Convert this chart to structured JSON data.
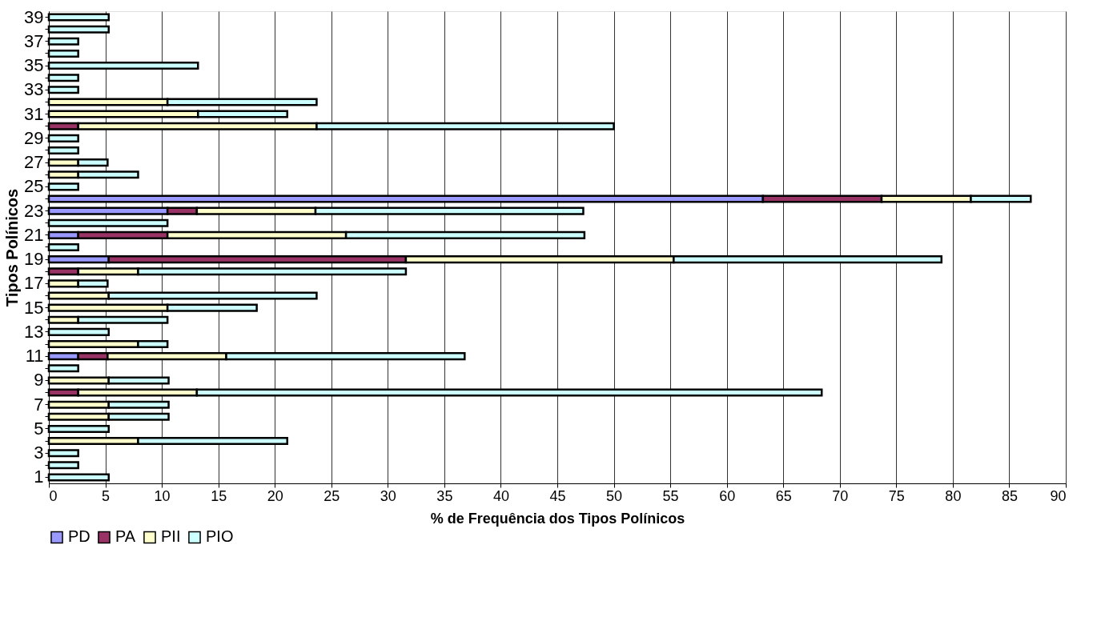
{
  "chart_data": {
    "type": "bar",
    "orientation": "horizontal",
    "stacked": true,
    "xlabel": "% de Frequência dos Tipos Polínicos",
    "ylabel": "Tipos Polínicos",
    "categories": [
      "39",
      null,
      "37",
      null,
      "35",
      null,
      "33",
      null,
      "31",
      null,
      "29",
      null,
      "27",
      null,
      "25",
      null,
      "23",
      null,
      "21",
      null,
      "19",
      null,
      "17",
      null,
      "15",
      null,
      "13",
      null,
      "11",
      null,
      "9",
      null,
      "7",
      null,
      "5",
      null,
      "3",
      null,
      "1"
    ],
    "series": [
      {
        "name": "PD",
        "color": "#9999ff",
        "values": [
          null,
          null,
          null,
          null,
          null,
          null,
          null,
          null,
          null,
          null,
          null,
          null,
          null,
          null,
          null,
          63.2,
          10.5,
          null,
          2.6,
          null,
          5.3,
          null,
          null,
          null,
          null,
          null,
          null,
          null,
          2.6,
          null,
          null,
          null,
          null,
          null,
          null,
          null,
          null,
          null,
          null
        ]
      },
      {
        "name": "PA",
        "color": "#993366",
        "values": [
          null,
          null,
          null,
          null,
          null,
          null,
          null,
          null,
          null,
          2.6,
          null,
          null,
          null,
          null,
          null,
          10.5,
          2.6,
          null,
          7.9,
          null,
          26.3,
          2.6,
          null,
          null,
          null,
          null,
          null,
          null,
          2.6,
          null,
          null,
          2.6,
          null,
          null,
          null,
          null,
          null,
          null,
          null
        ]
      },
      {
        "name": "PII",
        "color": "#ffffcc",
        "values": [
          null,
          null,
          null,
          null,
          null,
          null,
          null,
          10.5,
          13.2,
          21.1,
          null,
          null,
          2.6,
          2.6,
          null,
          7.9,
          10.5,
          null,
          15.8,
          null,
          23.7,
          5.3,
          2.6,
          5.3,
          10.5,
          2.6,
          null,
          7.9,
          10.5,
          null,
          5.3,
          10.5,
          5.3,
          5.3,
          null,
          7.9,
          null,
          null,
          null
        ]
      },
      {
        "name": "PIO",
        "color": "#ccffff",
        "values": [
          5.3,
          5.3,
          2.6,
          2.6,
          13.2,
          2.6,
          2.6,
          13.2,
          7.9,
          26.3,
          2.6,
          2.6,
          2.6,
          5.3,
          2.6,
          5.3,
          23.7,
          10.5,
          21.1,
          2.6,
          23.7,
          23.7,
          2.6,
          18.4,
          7.9,
          7.9,
          5.3,
          2.6,
          21.1,
          2.6,
          5.3,
          55.3,
          5.3,
          5.3,
          5.3,
          13.2,
          2.6,
          2.6,
          5.3
        ]
      }
    ],
    "xlim": [
      0,
      90
    ],
    "xticks": [
      0,
      5,
      10,
      15,
      20,
      25,
      30,
      35,
      40,
      45,
      50,
      55,
      60,
      65,
      70,
      75,
      80,
      85,
      90
    ],
    "grid": "x",
    "legend": "bottom"
  }
}
